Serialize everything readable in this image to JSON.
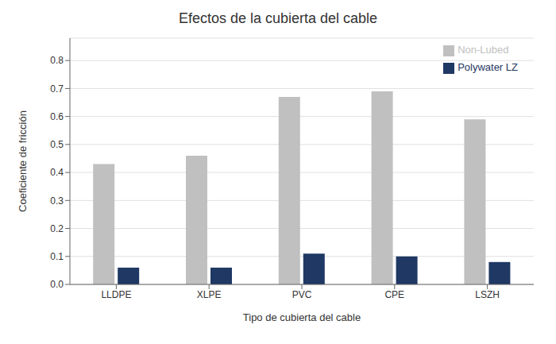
{
  "chart_data": {
    "type": "bar",
    "title": "Efectos de la cubierta del cable",
    "xlabel": "Tipo de cubierta del cable",
    "ylabel": "Coeficiente de fricción",
    "categories": [
      "LLDPE",
      "XLPE",
      "PVC",
      "CPE",
      "LSZH"
    ],
    "series": [
      {
        "name": "Non-Lubed",
        "color": "#c0c0c0",
        "values": [
          0.43,
          0.46,
          0.67,
          0.69,
          0.59
        ]
      },
      {
        "name": "Polywater LZ",
        "color": "#1f3864",
        "values": [
          0.06,
          0.06,
          0.11,
          0.1,
          0.08
        ]
      }
    ],
    "ylim": [
      0,
      0.88
    ],
    "yticks": [
      {
        "value": 0,
        "label": "0.0"
      },
      0.1,
      0.2,
      0.3,
      0.4,
      0.5,
      0.6,
      0.7,
      0.8
    ],
    "grid": true,
    "legend": "upper right"
  }
}
